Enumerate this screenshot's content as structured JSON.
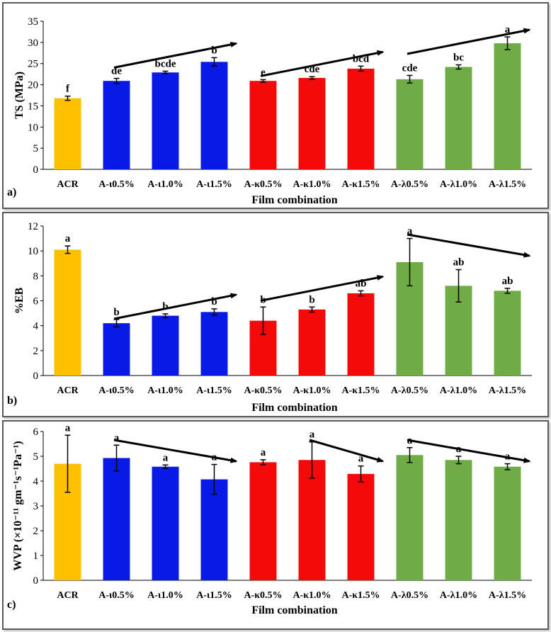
{
  "colors": {
    "ACR": "#FFC000",
    "iota": "#0A1AE6",
    "kappa": "#F50A0A",
    "lambda": "#6FAC46",
    "arrow": "#000000",
    "errbar": "#000000"
  },
  "categories": [
    "ACR",
    "A-ι0.5%",
    "A-ι1.0%",
    "A-ι1.5%",
    "A-κ0.5%",
    "A-κ1.0%",
    "A-κ1.5%",
    "A-λ0.5%",
    "A-λ1.0%",
    "A-λ1.5%"
  ],
  "chart_data": [
    {
      "type": "bar",
      "panel_label": "a)",
      "xlabel": "Film combination",
      "ylabel": "TS (MPa)",
      "ylim": [
        0,
        35
      ],
      "yticks": [
        0,
        5,
        10,
        15,
        20,
        25,
        30,
        35
      ],
      "categories": [
        "ACR",
        "A-ι0.5%",
        "A-ι1.0%",
        "A-ι1.5%",
        "A-κ0.5%",
        "A-κ1.0%",
        "A-κ1.5%",
        "A-λ0.5%",
        "A-λ1.0%",
        "A-λ1.5%"
      ],
      "values": [
        16.8,
        20.9,
        22.9,
        25.4,
        20.9,
        21.6,
        23.8,
        21.3,
        24.2,
        29.8
      ],
      "errors": [
        0.5,
        0.6,
        0.3,
        1.0,
        0.3,
        0.3,
        0.6,
        0.9,
        0.5,
        1.5
      ],
      "letters": [
        "f",
        "de",
        "bcde",
        "b",
        "e",
        "cde",
        "bcd",
        "cde",
        "bc",
        "a"
      ],
      "trend_arrows": [
        [
          1,
          3,
          "up"
        ],
        [
          4,
          6,
          "up"
        ],
        [
          7,
          9,
          "up"
        ]
      ],
      "grid": false
    },
    {
      "type": "bar",
      "panel_label": "b)",
      "xlabel": "Film combination",
      "ylabel": "%EB",
      "ylim": [
        0,
        12
      ],
      "yticks": [
        0,
        2,
        4,
        6,
        8,
        10,
        12
      ],
      "categories": [
        "ACR",
        "A-ι0.5%",
        "A-ι1.0%",
        "A-ι1.5%",
        "A-κ0.5%",
        "A-κ1.0%",
        "A-κ1.5%",
        "A-λ0.5%",
        "A-λ1.0%",
        "A-λ1.5%"
      ],
      "values": [
        10.1,
        4.2,
        4.8,
        5.1,
        4.4,
        5.3,
        6.6,
        9.1,
        7.2,
        6.8
      ],
      "errors": [
        0.3,
        0.3,
        0.15,
        0.25,
        1.1,
        0.2,
        0.2,
        1.9,
        1.3,
        0.2
      ],
      "letters": [
        "a",
        "b",
        "b",
        "b",
        "b",
        "b",
        "ab",
        "a",
        "ab",
        "ab"
      ],
      "trend_arrows": [
        [
          1,
          3,
          "up"
        ],
        [
          4,
          6,
          "up"
        ],
        [
          7,
          9,
          "down"
        ]
      ],
      "grid": false
    },
    {
      "type": "bar",
      "panel_label": "c)",
      "xlabel": "Film combination",
      "ylabel": "WVP (×10⁻¹¹ gm⁻¹s⁻¹Pa⁻¹)",
      "ylim": [
        0,
        6
      ],
      "yticks": [
        0,
        1,
        2,
        3,
        4,
        5,
        6
      ],
      "categories": [
        "ACR",
        "A-ι0.5%",
        "A-ι1.0%",
        "A-ι1.5%",
        "A-κ0.5%",
        "A-κ1.0%",
        "A-κ1.5%",
        "A-λ0.5%",
        "A-λ1.0%",
        "A-λ1.5%"
      ],
      "values": [
        4.7,
        4.93,
        4.58,
        4.07,
        4.76,
        4.85,
        4.29,
        5.05,
        4.85,
        4.58
      ],
      "errors": [
        1.15,
        0.52,
        0.07,
        0.6,
        0.1,
        0.73,
        0.32,
        0.3,
        0.15,
        0.12
      ],
      "letters": [
        "a",
        "a",
        "a",
        "a",
        "a",
        "a",
        "a",
        "a",
        "a",
        "a"
      ],
      "trend_arrows": [
        [
          1,
          3,
          "down"
        ],
        [
          5,
          6,
          "down"
        ],
        [
          7,
          9,
          "down"
        ]
      ],
      "grid": false
    }
  ]
}
